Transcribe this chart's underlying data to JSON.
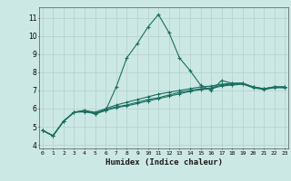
{
  "title": "",
  "xlabel": "Humidex (Indice chaleur)",
  "ylabel": "",
  "background_color": "#cce8e4",
  "grid_color": "#b8d4d0",
  "line_color": "#1a6e60",
  "x_ticks": [
    0,
    1,
    2,
    3,
    4,
    5,
    6,
    7,
    8,
    9,
    10,
    11,
    12,
    13,
    14,
    15,
    16,
    17,
    18,
    19,
    20,
    21,
    22,
    23
  ],
  "y_ticks": [
    4,
    5,
    6,
    7,
    8,
    9,
    10,
    11
  ],
  "xlim": [
    -0.3,
    23.3
  ],
  "ylim": [
    3.8,
    11.6
  ],
  "series": [
    {
      "x": [
        0,
        1,
        2,
        3,
        4,
        5,
        6,
        7,
        8,
        9,
        10,
        11,
        12,
        13,
        14,
        15,
        16,
        17,
        18,
        19,
        20,
        21,
        22,
        23
      ],
      "y": [
        4.8,
        4.5,
        5.3,
        5.8,
        5.9,
        5.7,
        5.9,
        7.2,
        8.8,
        9.6,
        10.5,
        11.2,
        10.2,
        8.8,
        8.1,
        7.3,
        7.0,
        7.55,
        7.4,
        7.4,
        7.2,
        7.1,
        7.2,
        7.2
      ]
    },
    {
      "x": [
        0,
        1,
        2,
        3,
        4,
        5,
        6,
        7,
        8,
        9,
        10,
        11,
        12,
        13,
        14,
        15,
        16,
        17,
        18,
        19,
        20,
        21,
        22,
        23
      ],
      "y": [
        4.8,
        4.5,
        5.3,
        5.8,
        5.9,
        5.8,
        6.0,
        6.2,
        6.35,
        6.5,
        6.65,
        6.8,
        6.9,
        7.0,
        7.1,
        7.2,
        7.25,
        7.35,
        7.4,
        7.4,
        7.2,
        7.1,
        7.2,
        7.2
      ]
    },
    {
      "x": [
        0,
        1,
        2,
        3,
        4,
        5,
        6,
        7,
        8,
        9,
        10,
        11,
        12,
        13,
        14,
        15,
        16,
        17,
        18,
        19,
        20,
        21,
        22,
        23
      ],
      "y": [
        4.8,
        4.5,
        5.3,
        5.8,
        5.85,
        5.75,
        5.95,
        6.1,
        6.2,
        6.35,
        6.5,
        6.6,
        6.75,
        6.9,
        7.0,
        7.1,
        7.15,
        7.3,
        7.35,
        7.38,
        7.18,
        7.08,
        7.18,
        7.18
      ]
    },
    {
      "x": [
        0,
        1,
        2,
        3,
        4,
        5,
        6,
        7,
        8,
        9,
        10,
        11,
        12,
        13,
        14,
        15,
        16,
        17,
        18,
        19,
        20,
        21,
        22,
        23
      ],
      "y": [
        4.8,
        4.5,
        5.3,
        5.8,
        5.82,
        5.72,
        5.9,
        6.05,
        6.15,
        6.28,
        6.42,
        6.55,
        6.68,
        6.82,
        6.95,
        7.05,
        7.1,
        7.25,
        7.3,
        7.35,
        7.15,
        7.05,
        7.15,
        7.15
      ]
    }
  ]
}
